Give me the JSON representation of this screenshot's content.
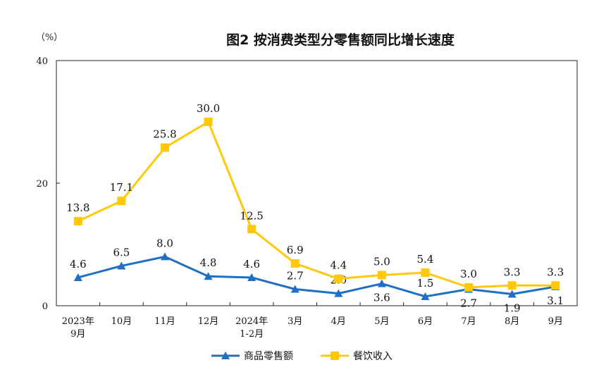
{
  "chart_data": {
    "type": "line",
    "title": "图2  按消费类型分零售额同比增长速度",
    "unit_label": "（%）",
    "categories": [
      [
        "2023年",
        "9月"
      ],
      [
        "10月"
      ],
      [
        "11月"
      ],
      [
        "12月"
      ],
      [
        "2024年",
        "1-2月"
      ],
      [
        "3月"
      ],
      [
        "4月"
      ],
      [
        "5月"
      ],
      [
        "6月"
      ],
      [
        "7月"
      ],
      [
        "8月"
      ],
      [
        "9月"
      ]
    ],
    "ylim": [
      0,
      40
    ],
    "yticks": [
      "0",
      "20",
      "40"
    ],
    "grid": false,
    "legend_position": "bottom",
    "series": [
      {
        "name": "商品零售额",
        "color": "#1f6fc5",
        "marker": "triangle",
        "values": [
          4.6,
          6.5,
          8.0,
          4.8,
          4.6,
          2.7,
          2.0,
          3.6,
          1.5,
          2.7,
          1.9,
          3.1
        ],
        "labels": [
          "4.6",
          "6.5",
          "8.0",
          "4.8",
          "4.6",
          "2.7",
          "2.0",
          "3.6",
          "1.5",
          "2.7",
          "1.9",
          "3.1"
        ],
        "label_side": [
          "above",
          "above",
          "above",
          "above",
          "above",
          "above",
          "above",
          "below",
          "above",
          "below",
          "below",
          "below"
        ]
      },
      {
        "name": "餐饮收入",
        "color": "#ffc80a",
        "marker": "square",
        "values": [
          13.8,
          17.1,
          25.8,
          30.0,
          12.5,
          6.9,
          4.4,
          5.0,
          5.4,
          3.0,
          3.3,
          3.3
        ],
        "labels": [
          "13.8",
          "17.1",
          "25.8",
          "30.0",
          "12.5",
          "6.9",
          "4.4",
          "5.0",
          "5.4",
          "3.0",
          "3.3",
          "3.3"
        ],
        "label_side": [
          "above",
          "above",
          "above",
          "above",
          "above",
          "above",
          "above",
          "above",
          "above",
          "above",
          "above",
          "above"
        ]
      }
    ]
  }
}
